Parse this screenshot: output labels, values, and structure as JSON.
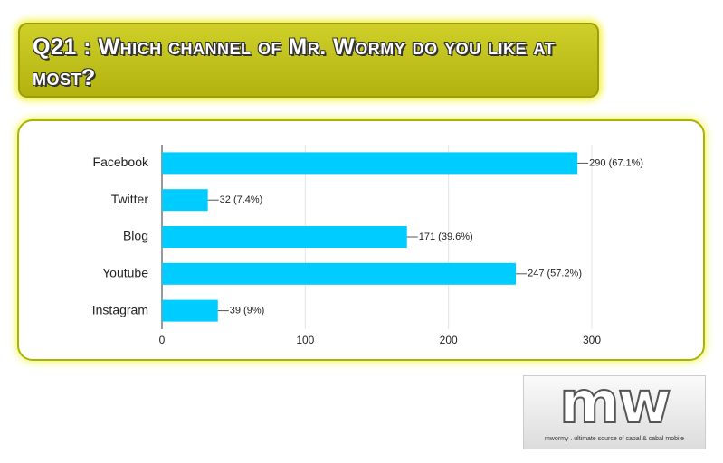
{
  "header": {
    "title": "Q21 : Which channel of Mr. Wormy do you like at most?"
  },
  "chart_data": {
    "type": "bar",
    "orientation": "horizontal",
    "categories": [
      "Facebook",
      "Twitter",
      "Blog",
      "Youtube",
      "Instagram"
    ],
    "values": [
      290,
      32,
      171,
      247,
      39
    ],
    "value_labels": [
      "290 (67.1%)",
      "32 (7.4%)",
      "171 (39.6%)",
      "247 (57.2%)",
      "39 (9%)"
    ],
    "color": "#00ccff",
    "xlim": [
      0,
      300
    ],
    "xticks": [
      0,
      100,
      200,
      300
    ],
    "grid": true
  },
  "logo": {
    "mark": "mw",
    "tagline": "mwormy . ultimate source of cabal & cabal mobile"
  }
}
